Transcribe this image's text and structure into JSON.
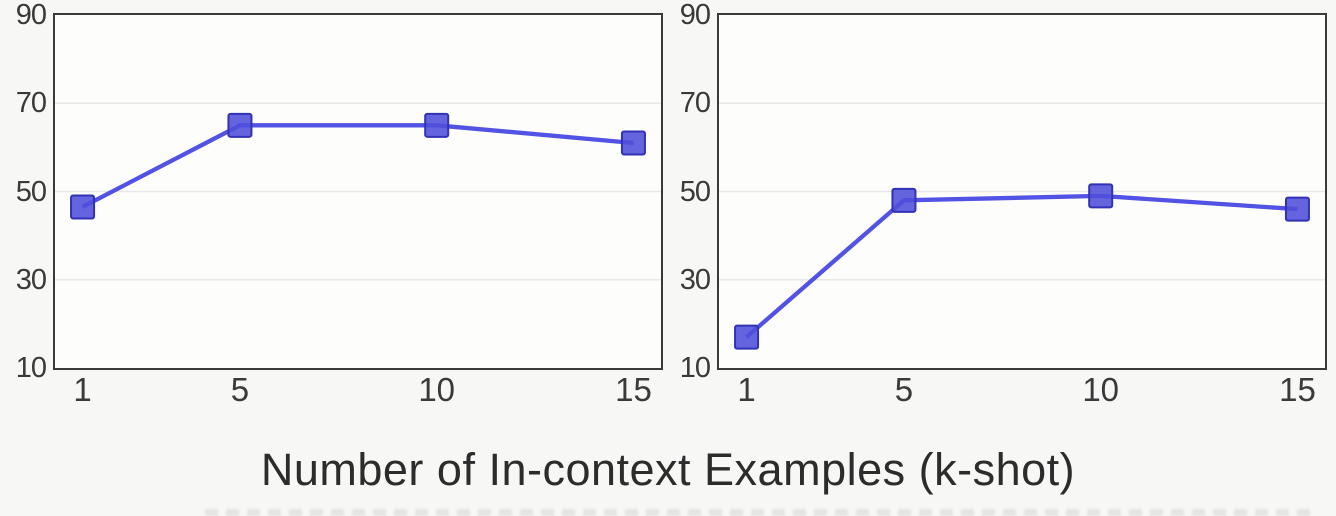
{
  "figure": {
    "xlabel": "Number of In-context Examples (k-shot)"
  },
  "colors": {
    "line": "#4343e2",
    "marker_fill": "#4f4fdb",
    "marker_edge": "#3232b4",
    "gridline": "#e8e8e8",
    "frame": "#3a3a3a",
    "tick_text": "#3a3a3a"
  },
  "chart_data": [
    {
      "type": "line",
      "title": "",
      "xlabel": "Number of In-context Examples (k-shot)",
      "ylabel": "",
      "x": [
        1,
        5,
        10,
        15
      ],
      "values": [
        46.5,
        65,
        65,
        61
      ],
      "xticks": [
        "1",
        "5",
        "10",
        "15"
      ],
      "xtick_values": [
        1,
        5,
        10,
        15
      ],
      "yticks": [
        "10",
        "30",
        "50",
        "70",
        "90"
      ],
      "ytick_values": [
        10,
        30,
        50,
        70,
        90
      ],
      "xlim": [
        0.3,
        15.7
      ],
      "ylim": [
        10,
        90
      ],
      "grid_y": [
        30,
        50,
        70
      ],
      "grid": "horizontal-only",
      "legend": "none",
      "marker": "square"
    },
    {
      "type": "line",
      "title": "",
      "xlabel": "Number of In-context Examples (k-shot)",
      "ylabel": "",
      "x": [
        1,
        5,
        10,
        15
      ],
      "values": [
        17,
        48,
        49,
        46
      ],
      "xticks": [
        "1",
        "5",
        "10",
        "15"
      ],
      "xtick_values": [
        1,
        5,
        10,
        15
      ],
      "yticks": [
        "10",
        "30",
        "50",
        "70",
        "90"
      ],
      "ytick_values": [
        10,
        30,
        50,
        70,
        90
      ],
      "xlim": [
        0.3,
        15.7
      ],
      "ylim": [
        10,
        90
      ],
      "grid_y": [
        30,
        50,
        70
      ],
      "grid": "horizontal-only",
      "legend": "none",
      "marker": "square"
    }
  ]
}
